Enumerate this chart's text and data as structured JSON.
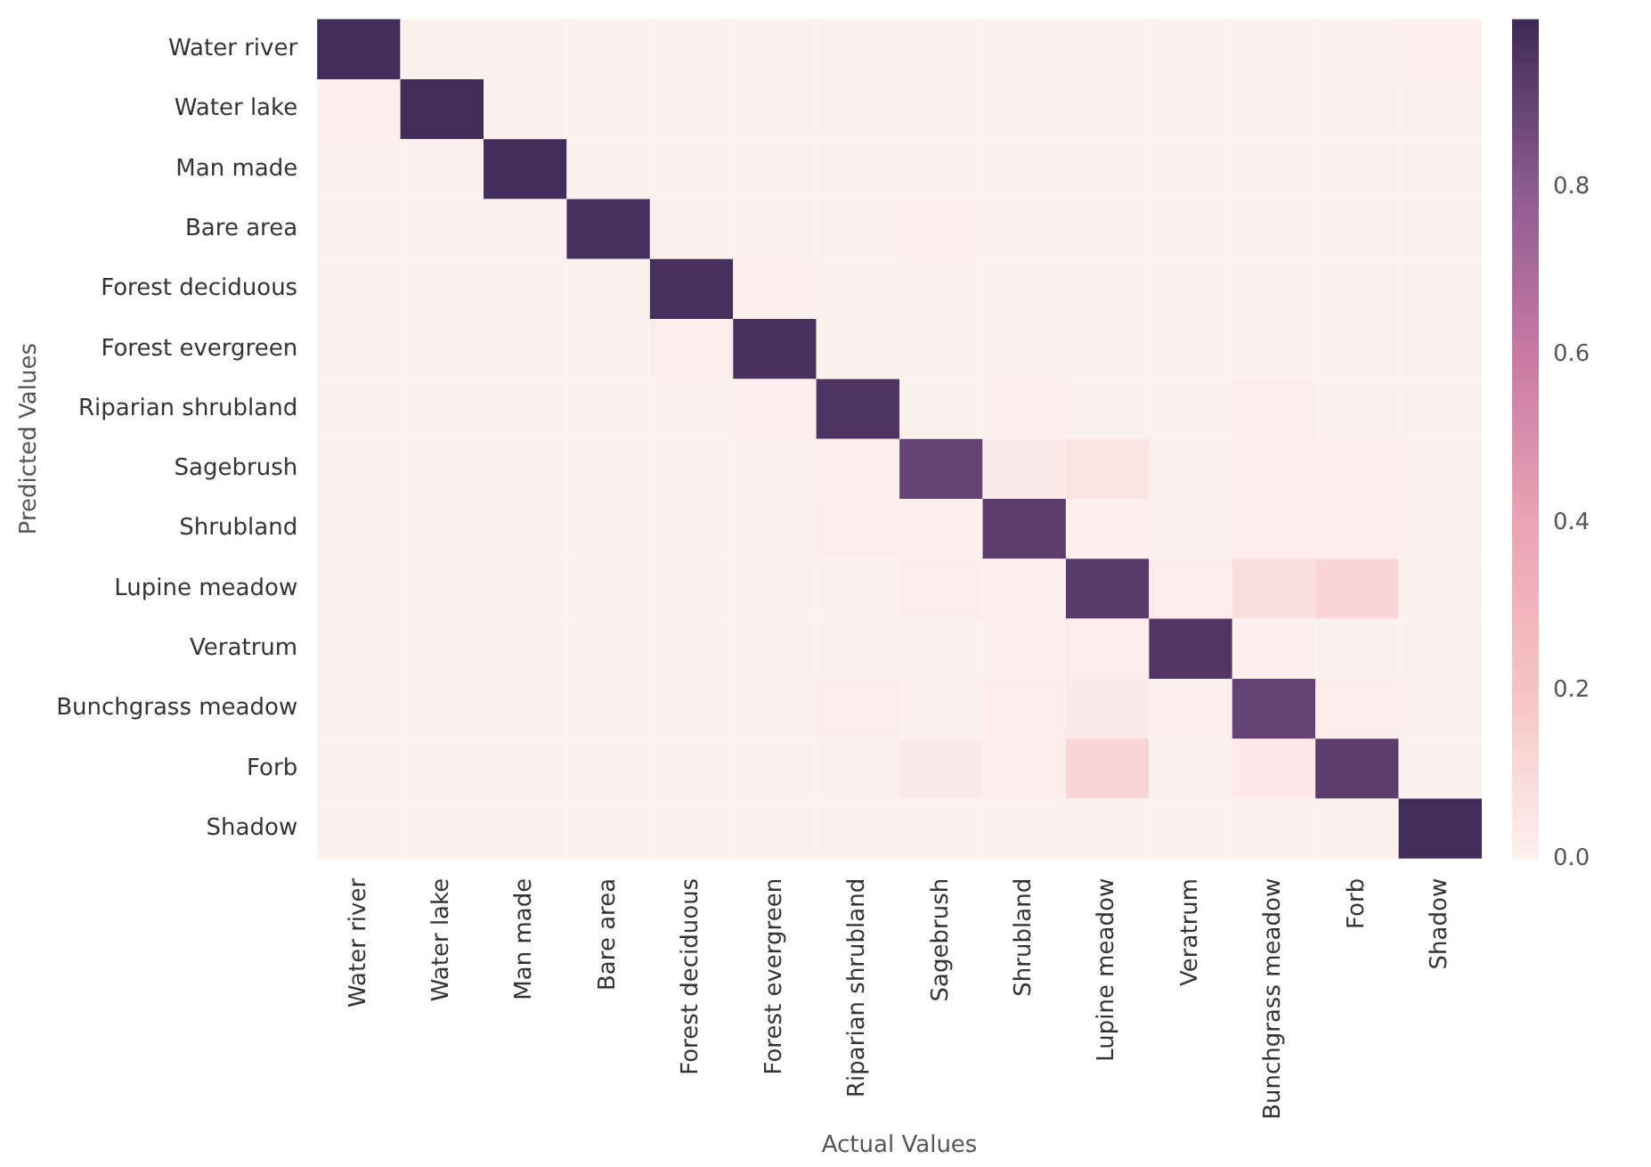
{
  "chart_data": {
    "type": "heatmap",
    "xlabel": "Actual Values",
    "ylabel": "Predicted Values",
    "categories": [
      "Water river",
      "Water lake",
      "Man made",
      "Bare area",
      "Forest deciduous",
      "Forest evergreen",
      "Riparian shrubland",
      "Sagebrush",
      "Shrubland",
      "Lupine meadow",
      "Veratrum",
      "Bunchgrass meadow",
      "Forb",
      "Shadow"
    ],
    "y_categories": [
      "Water river",
      "Water lake",
      "Man made",
      "Bare area",
      "Forest deciduous",
      "Forest evergreen",
      "Riparian shrubland",
      "Sagebrush",
      "Shrubland",
      "Lupine meadow",
      "Veratrum",
      "Bunchgrass meadow",
      "Forb",
      "Shadow"
    ],
    "cells": [
      [
        0.99,
        0,
        0,
        0,
        0,
        0,
        0,
        0,
        0,
        0,
        0,
        0,
        0,
        0.01
      ],
      [
        0.01,
        0.99,
        0,
        0,
        0,
        0,
        0,
        0,
        0,
        0,
        0,
        0,
        0,
        0
      ],
      [
        0,
        0,
        0.99,
        0,
        0,
        0,
        0,
        0,
        0,
        0,
        0,
        0,
        0,
        0
      ],
      [
        0,
        0,
        0,
        0.98,
        0,
        0,
        0,
        0.01,
        0,
        0,
        0,
        0,
        0,
        0
      ],
      [
        0,
        0,
        0,
        0,
        0.98,
        0.01,
        0,
        0,
        0,
        0,
        0,
        0,
        0,
        0
      ],
      [
        0,
        0,
        0,
        0,
        0.02,
        0.97,
        0,
        0,
        0,
        0,
        0,
        0,
        0,
        0
      ],
      [
        0,
        0,
        0,
        0,
        0,
        0.01,
        0.96,
        0,
        0.01,
        0,
        0,
        0.02,
        0,
        0
      ],
      [
        0,
        0,
        0,
        0,
        0,
        0,
        0.01,
        0.9,
        0.03,
        0.05,
        0,
        0.02,
        0.02,
        0
      ],
      [
        0,
        0,
        0,
        0,
        0,
        0,
        0.02,
        0.01,
        0.92,
        0.01,
        0,
        0.02,
        0.02,
        0
      ],
      [
        0,
        0,
        0,
        0,
        0,
        0,
        0,
        0.02,
        0.01,
        0.93,
        0.02,
        0.08,
        0.12,
        0
      ],
      [
        0,
        0,
        0,
        0,
        0,
        0,
        0,
        0,
        0.01,
        0.02,
        0.95,
        0.01,
        0,
        0
      ],
      [
        0,
        0,
        0,
        0,
        0,
        0,
        0.02,
        0,
        0.02,
        0.03,
        0.01,
        0.9,
        0.02,
        0
      ],
      [
        0,
        0,
        0,
        0,
        0,
        0,
        0,
        0.03,
        0.02,
        0.12,
        0,
        0.04,
        0.92,
        0
      ],
      [
        0,
        0,
        0,
        0,
        0,
        0,
        0,
        0,
        0,
        0,
        0,
        0,
        0,
        0.99
      ]
    ],
    "clim": [
      0,
      1
    ],
    "cticks": [
      {
        "value": 0,
        "label": "0.0"
      },
      {
        "value": 0.2,
        "label": "0.2"
      },
      {
        "value": 0.4,
        "label": "0.4"
      },
      {
        "value": 0.6,
        "label": "0.6"
      },
      {
        "value": 0.8,
        "label": "0.8"
      }
    ]
  }
}
